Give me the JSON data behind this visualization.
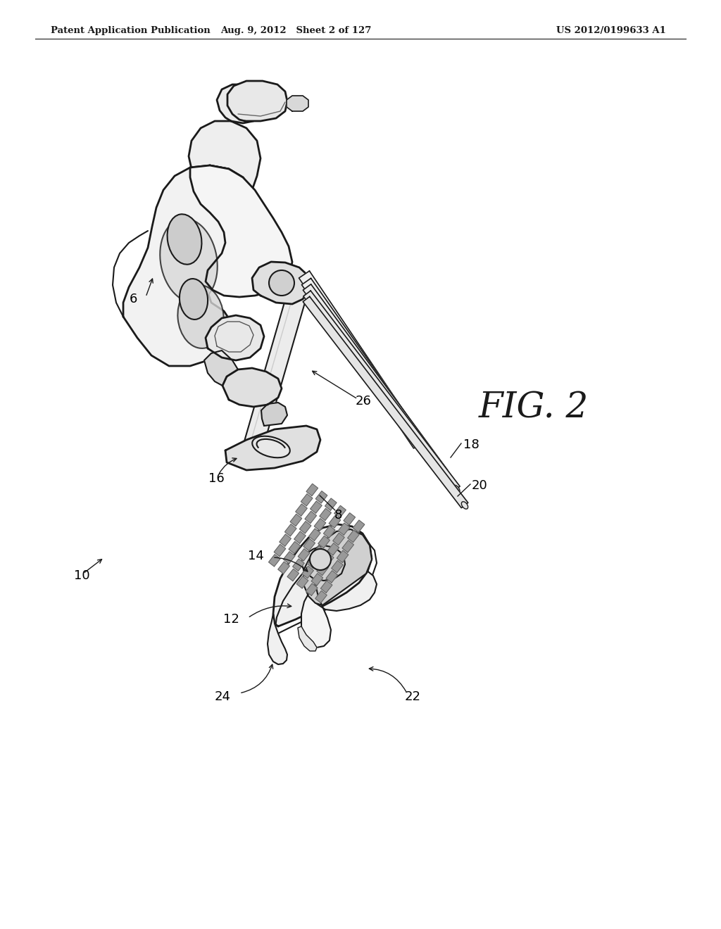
{
  "background_color": "#ffffff",
  "header_left": "Patent Application Publication",
  "header_center": "Aug. 9, 2012   Sheet 2 of 127",
  "header_right": "US 2012/0199633 A1",
  "fig_label": "FIG. 2",
  "line_color": "#1a1a1a",
  "fill_white": "#ffffff",
  "fill_light": "#f0f0f0",
  "fill_gray": "#d8d8d8",
  "fill_dark": "#aaaaaa"
}
